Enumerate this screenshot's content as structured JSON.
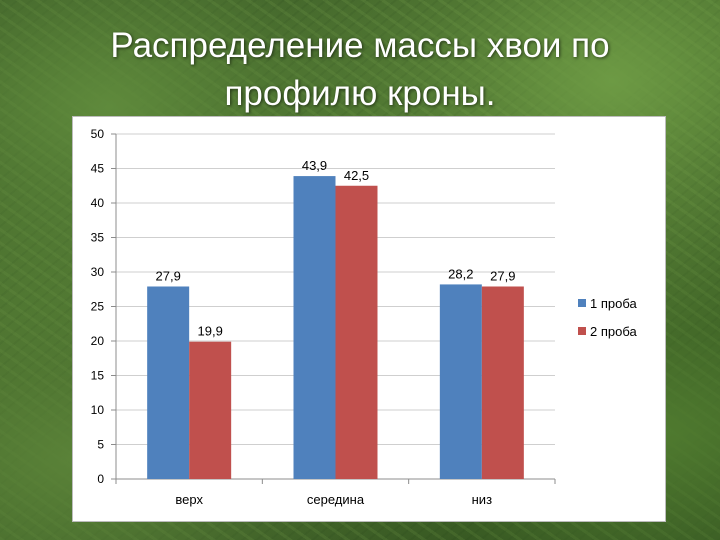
{
  "slide": {
    "title": "Распределение массы хвои по профилю кроны."
  },
  "chart_data": {
    "type": "bar",
    "categories": [
      "верх",
      "середина",
      "низ"
    ],
    "series": [
      {
        "name": "1 проба",
        "values": [
          27.9,
          43.9,
          28.2
        ],
        "labels": [
          "27,9",
          "43,9",
          "28,2"
        ],
        "color": "#4f81bd"
      },
      {
        "name": "2 проба",
        "values": [
          19.9,
          42.5,
          27.9
        ],
        "labels": [
          "19,9",
          "42,5",
          "27,9"
        ],
        "color": "#c0504d"
      }
    ],
    "ylim": [
      0,
      50
    ],
    "yticks": [
      0,
      5,
      10,
      15,
      20,
      25,
      30,
      35,
      40,
      45,
      50
    ],
    "grid": true,
    "legend_position": "right",
    "xlabel": "",
    "ylabel": ""
  }
}
